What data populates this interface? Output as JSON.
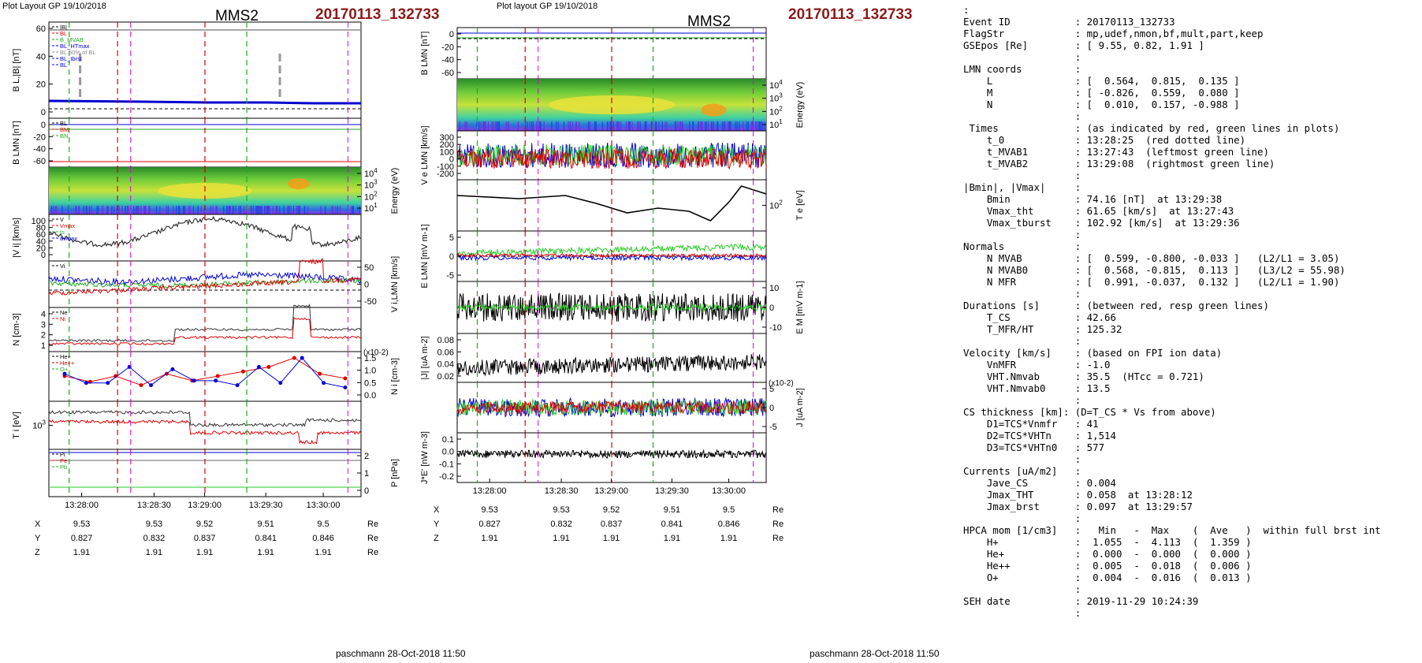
{
  "left": {
    "header": "Plot Layout GP 19/10/2018",
    "title": "MMS2",
    "event": "20170113_132733",
    "footer": "paschmann 28-Oct-2018 11:50",
    "panels": [
      {
        "ylabel": "B_L,|B| [nT]",
        "ticks": [
          "60",
          "40",
          "20",
          "0"
        ],
        "legend": [
          "|B|",
          "BL",
          "B_MVAB",
          "BL_HTmax",
          "BL 50% of BL",
          "BL_tbrst",
          "BL"
        ]
      },
      {
        "ylabel": "B_LMN [nT]",
        "ticks": [
          "0",
          "-20",
          "-40",
          "-60"
        ],
        "legend": [
          "BL",
          "BM",
          "BN"
        ]
      },
      {
        "ylabel": "Energy (eV)",
        "ticks": [
          "10^4",
          "10^3",
          "10^2",
          "10^1"
        ]
      },
      {
        "ylabel": "|V_i| [km/s]",
        "ticks": [
          "100",
          "80",
          "60",
          "40",
          "20",
          "0"
        ],
        "legend": [
          "V",
          "Vmax",
          "ts",
          "dvmax"
        ]
      },
      {
        "ylabel": "V_i,LMN [km/s]",
        "ticks": [
          "50",
          "0",
          "-50"
        ],
        "legend": [
          "Vi",
          "",
          ""
        ]
      },
      {
        "ylabel": "N [cm^-3]",
        "ticks": [
          "4",
          "3",
          "2",
          "1"
        ],
        "legend": [
          "Ne",
          "Ni"
        ]
      },
      {
        "ylabel": "N_i [cm^-3]",
        "ticks": [
          "1.5",
          "1.0",
          "0.5",
          "0.0"
        ],
        "scale": "(x10^-2)",
        "legend": [
          "He+",
          "He++",
          "O+"
        ]
      },
      {
        "ylabel": "T_i [eV]",
        "ticks": [
          "10^3"
        ],
        "legend": []
      },
      {
        "ylabel": "P [nPa]",
        "ticks": [
          "2",
          "1",
          "0"
        ],
        "legend": [
          "Pi",
          "Pe",
          "Pb"
        ]
      }
    ],
    "xticks": [
      "13:28:00",
      "13:28:30",
      "13:29:00",
      "13:29:30",
      "13:30:00"
    ],
    "pos": {
      "X": [
        "9.53",
        "9.53",
        "9.52",
        "9.51",
        "9.5"
      ],
      "Y": [
        "0.827",
        "0.832",
        "0.837",
        "0.841",
        "0.846"
      ],
      "Z": [
        "1.91",
        "1.91",
        "1.91",
        "1.91",
        "1.91"
      ],
      "unit": "Re"
    }
  },
  "middle": {
    "header": "Plot layout GP 19/10/2018",
    "title": "MMS2",
    "event": "20170113_132733",
    "footer": "paschmann 28-Oct-2018 11:50",
    "panels": [
      {
        "ylabel": "B_LMN [nT]",
        "ticks": [
          "0",
          "-20",
          "-40",
          "-60"
        ]
      },
      {
        "ylabel": "Energy (eV)",
        "ticks": [
          "10^4",
          "10^3",
          "10^2",
          "10^1"
        ]
      },
      {
        "ylabel": "V_e LMN [km/s]",
        "ticks": [
          "300",
          "200",
          "100",
          "0",
          "-100",
          "-200"
        ]
      },
      {
        "ylabel": "T_e [eV]",
        "ticks": [
          "10^2"
        ]
      },
      {
        "ylabel": "E_LMN [mV m^-1]",
        "ticks": [
          "5",
          "0",
          "-5"
        ]
      },
      {
        "ylabel": "E_M [mV m^-1]",
        "ticks": [
          "10",
          "0",
          "-10"
        ]
      },
      {
        "ylabel": "|J| [uA m^-2]",
        "ticks": [
          "0.08",
          "0.06",
          "0.04",
          "0.02"
        ]
      },
      {
        "ylabel": "J [uA m^-2]",
        "ticks": [
          "5",
          "0",
          "-5"
        ],
        "scale": "(x10^-2)"
      },
      {
        "ylabel": "J*E' [nW m^-3]",
        "ticks": [
          "0.1",
          "0.0",
          "-0.1",
          "-0.2"
        ]
      }
    ],
    "xticks": [
      "13:28:00",
      "13:28:30",
      "13:29:00",
      "13:29:30",
      "13:30:00"
    ],
    "pos": {
      "X": [
        "9.53",
        "9.53",
        "9.52",
        "9.51",
        "9.5"
      ],
      "Y": [
        "0.827",
        "0.832",
        "0.837",
        "0.841",
        "0.846"
      ],
      "Z": [
        "1.91",
        "1.91",
        "1.91",
        "1.91",
        "1.91"
      ],
      "unit": "Re"
    }
  },
  "info_lines": [
    ":",
    "Event ID           : 20170113_132733",
    "FlagStr            : mp,udef,nmon,bf,mult,part,keep",
    "GSEpos [Re]        : [ 9.55, 0.82, 1.91 ]",
    "                   :",
    "LMN coords         :",
    "    L              : [  0.564,  0.815,  0.135 ]",
    "    M              : [ -0.826,  0.559,  0.080 ]",
    "    N              : [  0.010,  0.157, -0.988 ]",
    "                   :",
    " Times             : (as indicated by red, green lines in plots)",
    "    t_0            : 13:28:25  (red dotted line)",
    "    t_MVAB1        : 13:27:43  (leftmost green line)",
    "    t_MVAB2        : 13:29:08  (rightmost green line)",
    "                   :",
    "|Bmin|, |Vmax|     :",
    "    Bmin           : 74.16 [nT]  at 13:29:38",
    "    Vmax_tht       : 61.65 [km/s]  at 13:27:43",
    "    Vmax_tburst    : 102.92 [km/s]  at 13:29:36",
    "                   :",
    "Normals            :",
    "    N MVAB         : [  0.599, -0.800, -0.033 ]   (L2/L1 = 3.05)",
    "    N MVAB0        : [  0.568, -0.815,  0.113 ]   (L3/L2 = 55.98)",
    "    N MFR          : [  0.991, -0.037,  0.132 ]   (L2/L1 = 1.90)",
    "                   :",
    "Durations [s]      : (between red, resp green lines)",
    "    T_CS           : 42.66",
    "    T_MFR/HT       : 125.32",
    "                   :",
    "Velocity [km/s]    : (based on FPI ion data)",
    "    VnMFR          : -1.0",
    "    VHT.Nmvab      : 35.5  (HTcc = 0.721)",
    "    VHT.Nmvab0     : 13.5",
    "                   :",
    "CS thickness [km]: (D=T_CS * Vs from above)",
    "    D1=TCS*Vnmfr   : 41",
    "    D2=TCS*VHTn    : 1,514",
    "    D3=TCS*VHTn0   : 577",
    "                   :",
    "Currents [uA/m2]   :",
    "    Jave_CS        : 0.004",
    "    Jmax_THT       : 0.058  at 13:28:12",
    "    Jmax_brst      : 0.097  at 13:29:57",
    "                   :",
    "HPCA mom [1/cm3]   :   Min   -  Max    (  Ave   )  within full brst int",
    "    H+             :  1.055  -  4.113  (  1.359 )",
    "    He+            :  0.000  -  0.000  (  0.000 )",
    "    He++           :  0.005  -  0.018  (  0.006 )",
    "    O+             :  0.004  -  0.016  (  0.013 )",
    "                   :",
    "SEH date           : 2019-11-29 10:24:39",
    "                   :"
  ],
  "chart_data": [
    {
      "type": "line",
      "title": "MMS2 20170113_132733",
      "xlabel": "",
      "x_ticks": [
        "13:28:00",
        "13:28:30",
        "13:29:00",
        "13:29:30",
        "13:30:00"
      ],
      "series": [
        {
          "name": "|B|",
          "values": [
            8,
            8,
            7.5,
            7,
            7,
            6.5,
            6.5,
            6.5
          ]
        },
        {
          "name": "Ni",
          "values": [
            1.5,
            1.5,
            1.5,
            2.6,
            2.7,
            2.3,
            2.4,
            3.8,
            1.6
          ]
        },
        {
          "name": "He++",
          "values": [
            0.9,
            0.65,
            0.9,
            0.5,
            1.0,
            0.7,
            0.9,
            1.1,
            1.3,
            1.7,
            1.0,
            0.8
          ]
        },
        {
          "name": "O+",
          "values": [
            1.0,
            0.6,
            0.6,
            1.3,
            0.5,
            1.2,
            0.7,
            0.7,
            0.5,
            1.3,
            0.6,
            1.7,
            0.6,
            0.4
          ]
        }
      ]
    },
    {
      "type": "line",
      "title": "MMS2 20170113_132733",
      "xlabel": "",
      "x_ticks": [
        "13:28:00",
        "13:28:30",
        "13:29:00",
        "13:29:30",
        "13:30:00"
      ],
      "series": [
        {
          "name": "Te",
          "values": [
            160,
            150,
            155,
            140,
            100,
            95,
            120,
            110,
            90,
            250,
            200
          ]
        },
        {
          "name": "|J|",
          "values": [
            0.02,
            0.025,
            0.02,
            0.03,
            0.025,
            0.03,
            0.04,
            0.06
          ]
        }
      ]
    }
  ]
}
